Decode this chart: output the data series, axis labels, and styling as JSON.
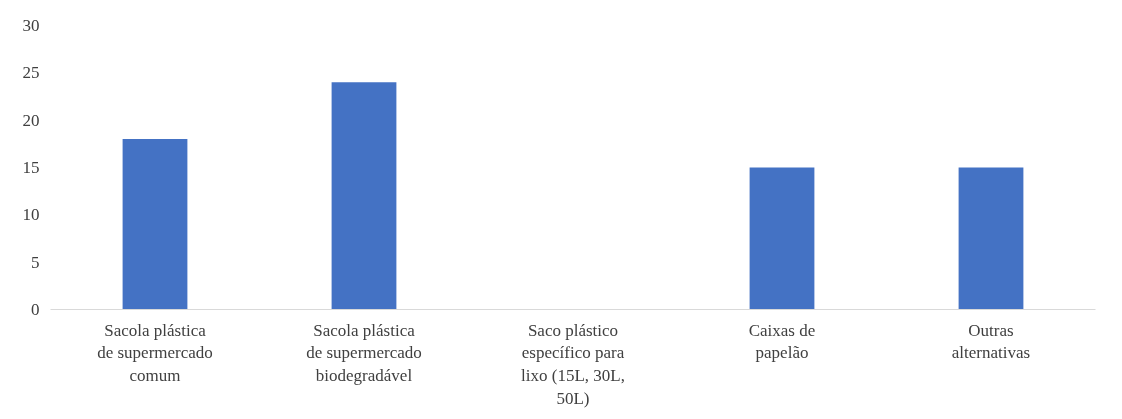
{
  "chart_data": {
    "type": "bar",
    "categories": [
      "Sacola plástica de supermercado comum",
      "Sacola plástica de supermercado biodegradável",
      "Saco plástico específico para lixo (15L, 30L, 50L)",
      "Caixas de papelão",
      "Outras alternativas"
    ],
    "values": [
      18,
      24,
      0,
      15,
      15
    ],
    "color": "#4472c4",
    "ylim": [
      0,
      30
    ],
    "yticks": [
      0,
      5,
      10,
      15,
      20,
      25,
      30
    ],
    "grid": false
  }
}
